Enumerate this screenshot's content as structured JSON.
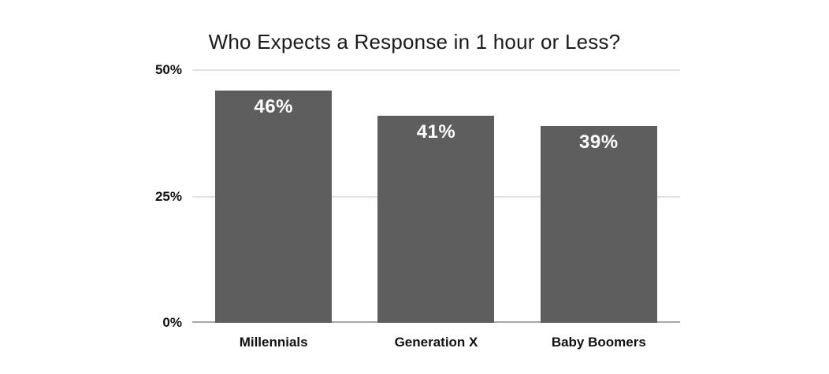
{
  "chart_data": {
    "type": "bar",
    "title": "Who Expects a Response in 1 hour or Less?",
    "categories": [
      "Millennials",
      "Generation X",
      "Baby Boomers"
    ],
    "values": [
      46,
      41,
      39
    ],
    "value_labels": [
      "46%",
      "41%",
      "39%"
    ],
    "xlabel": "",
    "ylabel": "",
    "ylim": [
      0,
      50
    ],
    "y_ticks": [
      {
        "value": 0,
        "label": "0%"
      },
      {
        "value": 25,
        "label": "25%"
      },
      {
        "value": 50,
        "label": "50%"
      }
    ],
    "grid": true,
    "legend": false,
    "colors": {
      "bar": "#5e5e5e",
      "bar_label": "#ffffff",
      "gridline": "#e2e2e2",
      "axis_line": "#a8a8a8",
      "title": "#1b1b1b",
      "tick_label": "#111111",
      "background": "#ffffff"
    }
  }
}
